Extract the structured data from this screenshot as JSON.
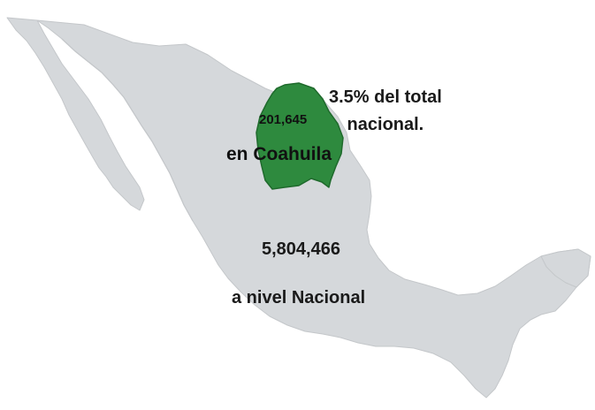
{
  "map": {
    "country_color": "#d5d8db",
    "country_stroke": "#c4c7ca",
    "highlight_color": "#2e8a3e",
    "highlight_stroke": "#1f6a2c",
    "highlighted_region": "Coahuila"
  },
  "labels": {
    "coahuila_value": "201,645",
    "coahuila_caption": "en Coahuila",
    "national_value": "5,804,466",
    "national_caption": "a nivel Nacional",
    "percent_line1": "3.5% del total",
    "percent_line2": "nacional."
  }
}
